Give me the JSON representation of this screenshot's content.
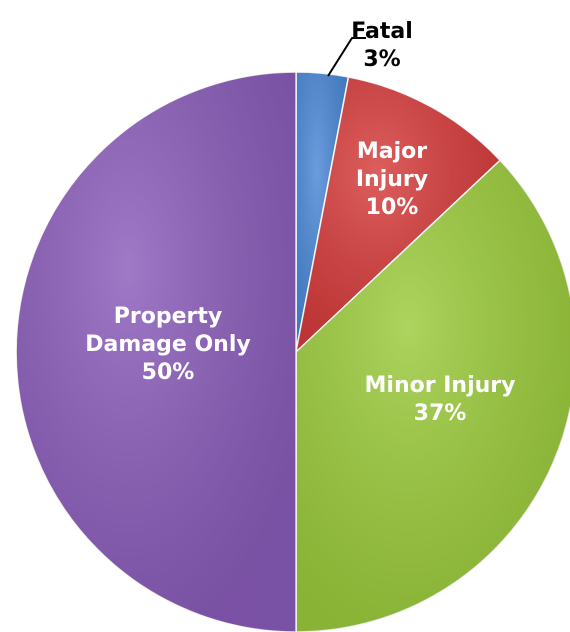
{
  "chart_data": {
    "type": "pie",
    "categories": [
      "Fatal",
      "Major Injury",
      "Minor Injury",
      "Property Damage Only"
    ],
    "values": [
      3,
      10,
      37,
      50
    ],
    "value_labels": [
      "3%",
      "10%",
      "37%",
      "50%"
    ],
    "colors": [
      "#4a87d6",
      "#d63b3b",
      "#9bcb3b",
      "#8a5cba"
    ]
  }
}
